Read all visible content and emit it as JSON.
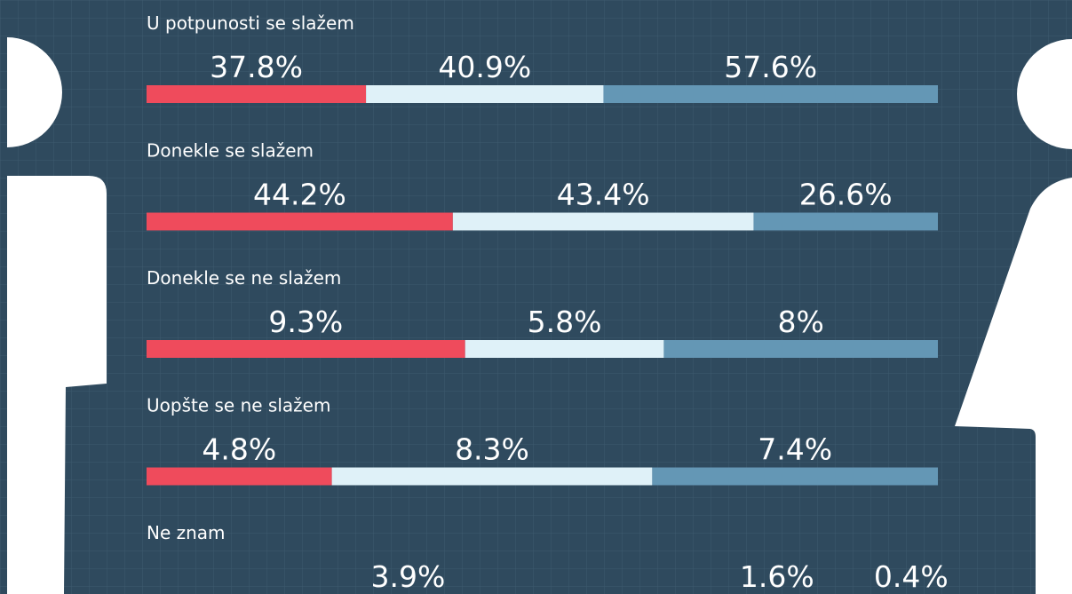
{
  "chart_data": {
    "type": "bar",
    "categories": [
      "U potpunosti se slažem",
      "Donekle se slažem",
      "Donekle se ne slažem",
      "Uopšte se ne slažem",
      "Ne znam"
    ],
    "series": [
      {
        "color": "#ef4b5c",
        "values": [
          37.8,
          44.2,
          9.3,
          4.8,
          3.9
        ],
        "value_labels": [
          "37.8%",
          "44.2%",
          "9.3%",
          "4.8%",
          "3.9%"
        ]
      },
      {
        "color": "#dff1f8",
        "values": [
          40.9,
          43.4,
          5.8,
          8.3,
          1.6
        ],
        "value_labels": [
          "40.9%",
          "43.4%",
          "5.8%",
          "8.3%",
          "1.6%"
        ]
      },
      {
        "color": "#6497b5",
        "values": [
          57.6,
          26.6,
          8,
          7.4,
          0.4
        ],
        "value_labels": [
          "57.6%",
          "26.6%",
          "8%",
          "7.4%",
          "0.4%"
        ]
      }
    ]
  }
}
